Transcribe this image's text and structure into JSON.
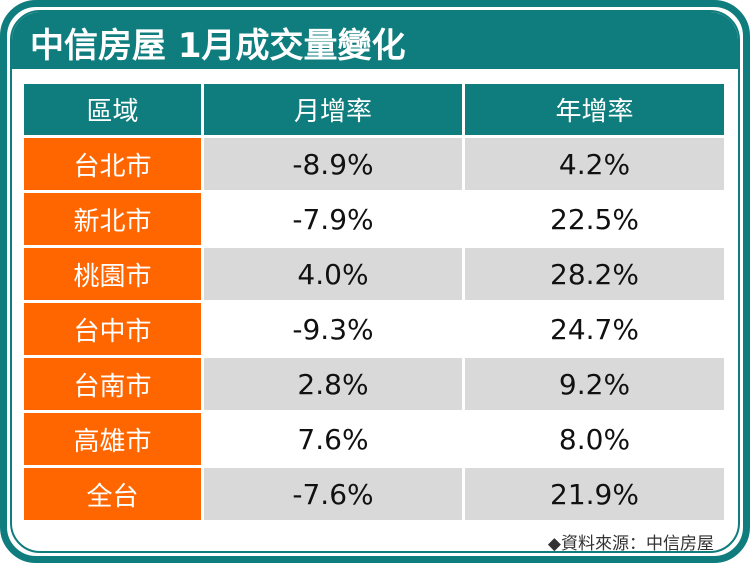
{
  "title": "中信房屋 1月成交量變化",
  "colors": {
    "teal": "#0f7d7d",
    "orange": "#ff6600",
    "gray_row": "#d9d9d9",
    "white_row": "#ffffff"
  },
  "table": {
    "headers": [
      "區域",
      "月增率",
      "年增率"
    ],
    "rows": [
      {
        "region": "台北市",
        "mom": "-8.9%",
        "yoy": "4.2%"
      },
      {
        "region": "新北市",
        "mom": "-7.9%",
        "yoy": "22.5%"
      },
      {
        "region": "桃園市",
        "mom": "4.0%",
        "yoy": "28.2%"
      },
      {
        "region": "台中市",
        "mom": "-9.3%",
        "yoy": "24.7%"
      },
      {
        "region": "台南市",
        "mom": "2.8%",
        "yoy": "9.2%"
      },
      {
        "region": "高雄市",
        "mom": "7.6%",
        "yoy": "8.0%"
      },
      {
        "region": "全台",
        "mom": "-7.6%",
        "yoy": "21.9%"
      }
    ]
  },
  "source": "◆資料來源：中信房屋",
  "chart_data": {
    "type": "table",
    "title": "中信房屋 1月成交量變化",
    "columns": [
      "區域",
      "月增率",
      "年增率"
    ],
    "categories": [
      "台北市",
      "新北市",
      "桃園市",
      "台中市",
      "台南市",
      "高雄市",
      "全台"
    ],
    "series": [
      {
        "name": "月增率",
        "unit": "%",
        "values": [
          -8.9,
          -7.9,
          4.0,
          -9.3,
          2.8,
          7.6,
          -7.6
        ]
      },
      {
        "name": "年增率",
        "unit": "%",
        "values": [
          4.2,
          22.5,
          28.2,
          24.7,
          9.2,
          8.0,
          21.9
        ]
      }
    ],
    "source": "中信房屋"
  }
}
